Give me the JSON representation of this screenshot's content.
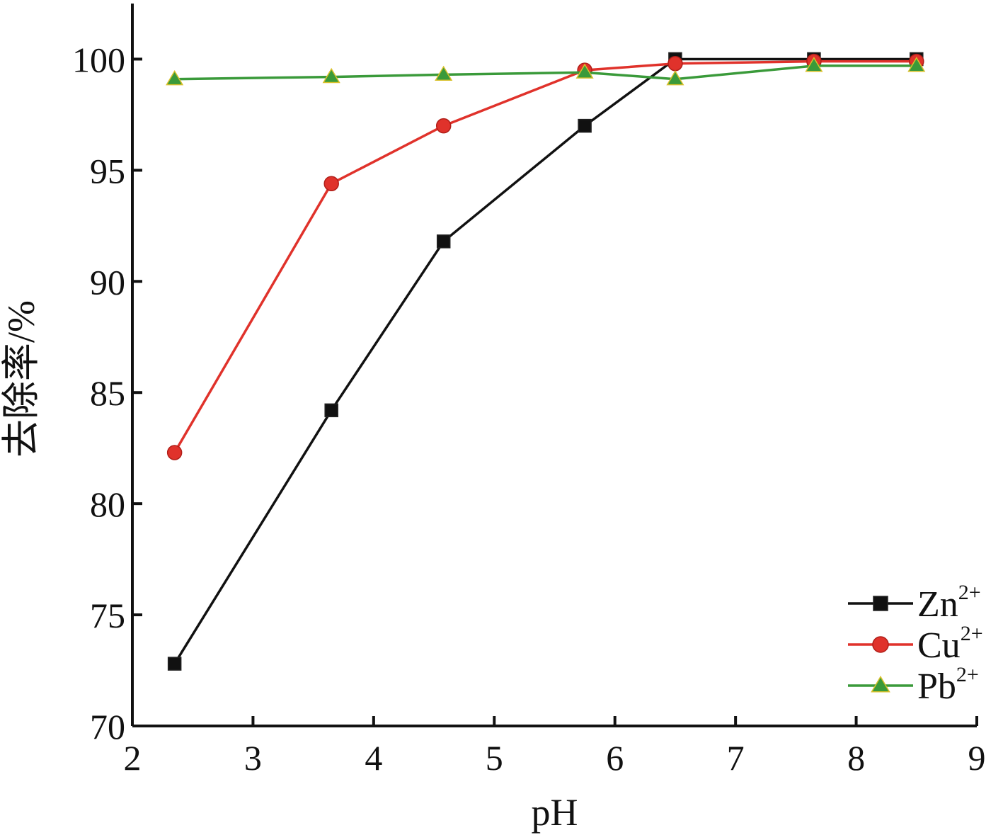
{
  "chart_data": {
    "type": "line",
    "title": "",
    "xlabel": "pH",
    "ylabel": "去除率/%",
    "xlim": [
      2,
      9
    ],
    "ylim": [
      70,
      102.5
    ],
    "x_ticks": [
      2,
      3,
      4,
      5,
      6,
      7,
      8,
      9
    ],
    "y_ticks": [
      70,
      75,
      80,
      85,
      90,
      95,
      100
    ],
    "grid": false,
    "legend_position": "bottom-right",
    "series": [
      {
        "name": "Zn",
        "name_sup": "2+",
        "color": "#111111",
        "marker": "square",
        "x": [
          2.35,
          3.65,
          4.58,
          5.75,
          6.5,
          7.65,
          8.5
        ],
        "y": [
          72.8,
          84.2,
          91.8,
          97.0,
          100.0,
          100.0,
          100.0
        ]
      },
      {
        "name": "Cu",
        "name_sup": "2+",
        "color": "#e0322b",
        "marker": "circle",
        "x": [
          2.35,
          3.65,
          4.58,
          5.75,
          6.5,
          7.65,
          8.5
        ],
        "y": [
          82.3,
          94.4,
          97.0,
          99.5,
          99.8,
          99.9,
          99.9
        ]
      },
      {
        "name": "Pb",
        "name_sup": "2+",
        "color": "#3a9a3a",
        "marker": "triangle",
        "x": [
          2.35,
          3.65,
          4.58,
          5.75,
          6.5,
          7.65,
          8.5
        ],
        "y": [
          99.1,
          99.2,
          99.3,
          99.4,
          99.1,
          99.7,
          99.7
        ]
      }
    ]
  }
}
